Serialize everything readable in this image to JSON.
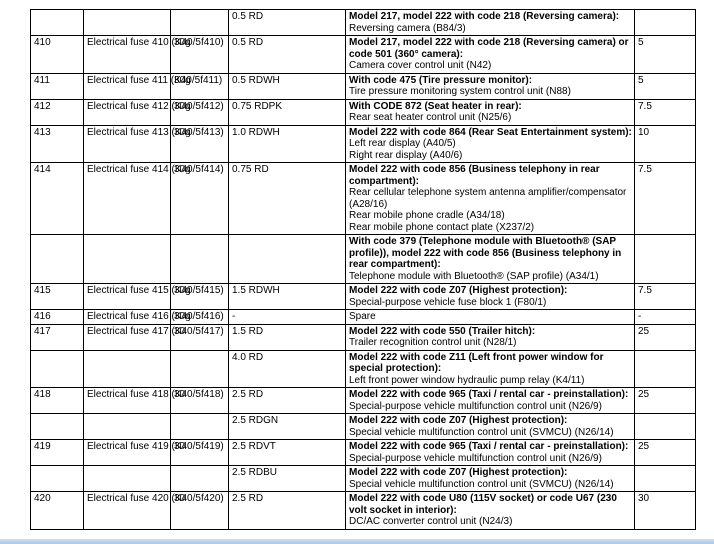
{
  "table": {
    "rows": [
      {
        "wire": "0.5 RD",
        "heading": "Model 217, model 222 with code 218 (Reversing camera):",
        "details": [
          "Reversing camera (B84/3)"
        ]
      },
      {
        "fuse": "410",
        "name": "Electrical fuse 410 (K40/5f410)",
        "rating": "30g",
        "wire": "0.5 RD",
        "heading": "Model 217, model 222 with code 218 (Reversing camera) or code 501 (360° camera):",
        "details": [
          "Camera cover control unit (N42)"
        ],
        "amps": "5"
      },
      {
        "fuse": "411",
        "name": "Electrical fuse 411 (K40/5f411)",
        "rating": "30g",
        "wire": "0.5 RDWH",
        "heading": "With code 475 (Tire pressure monitor):",
        "details": [
          "Tire pressure monitoring system control unit (N88)"
        ],
        "amps": "5"
      },
      {
        "fuse": "412",
        "name": "Electrical fuse 412 (K40/5f412)",
        "rating": "30g",
        "wire": "0.75 RDPK",
        "heading": "With CODE 872 (Seat heater in rear):",
        "details": [
          "Rear seat heater control unit (N25/6)"
        ],
        "amps": "7.5"
      },
      {
        "fuse": "413",
        "name": "Electrical fuse 413 (K40/5f413)",
        "rating": "30g",
        "wire": "1.0 RDWH",
        "heading": "Model 222 with code 864 (Rear Seat Entertainment system):",
        "details": [
          "Left rear display (A40/5)",
          "Right rear display (A40/6)"
        ],
        "amps": "10"
      },
      {
        "fuse": "414",
        "name": "Electrical fuse 414 (K40/5f414)",
        "rating": "30g",
        "wire": "0.75 RD",
        "heading": "Model 222 with code 856 (Business telephony in rear compartment):",
        "details": [
          "Rear cellular telephone system antenna amplifier/compensator (A28/16)",
          "Rear mobile phone cradle (A34/18)",
          "Rear mobile phone contact plate (X237/2)"
        ],
        "amps": "7.5"
      },
      {
        "heading": "With code 379 (Telephone module with Bluetooth® (SAP profile)), model 222 with code 856 (Business telephony in rear compartment):",
        "details": [
          "Telephone module with Bluetooth® (SAP profile) (A34/1)"
        ]
      },
      {
        "fuse": "415",
        "name": "Electrical fuse 415 (K40/5f415)",
        "rating": "30g",
        "wire": "1.5 RDWH",
        "heading": "Model 222 with code Z07 (Highest protection):",
        "details": [
          "Special-purpose vehicle fuse block 1 (F80/1)"
        ],
        "amps": "7.5"
      },
      {
        "fuse": "416",
        "name": "Electrical fuse 416 (K40/5f416)",
        "rating": "30g",
        "wire": "-",
        "details": [
          "Spare"
        ],
        "amps": "-"
      },
      {
        "fuse": "417",
        "name": "Electrical fuse 417 (K40/5f417)",
        "rating": "30",
        "wire": "1.5 RD",
        "heading": "Model 222 with code 550 (Trailer hitch):",
        "details": [
          "Trailer recognition control unit (N28/1)"
        ],
        "amps": "25"
      },
      {
        "wire": "4.0 RD",
        "heading": "Model 222 with code Z11 (Left front power window for special protection):",
        "details": [
          "Left front power window hydraulic pump relay (K4/11)"
        ]
      },
      {
        "fuse": "418",
        "name": "Electrical fuse 418 (K40/5f418)",
        "rating": "30",
        "wire": "2.5 RD",
        "heading": "Model 222 with code 965 (Taxi / rental car - preinstallation):",
        "details": [
          "Special-purpose vehicle multifunction control unit (N26/9)"
        ],
        "amps": "25"
      },
      {
        "wire": "2.5 RDGN",
        "heading": "Model 222 with code Z07 (Highest protection):",
        "details": [
          "Special vehicle multifunction control unit (SVMCU) (N26/14)"
        ]
      },
      {
        "fuse": "419",
        "name": "Electrical fuse 419 (K40/5f419)",
        "rating": "30",
        "wire": "2.5 RDVT",
        "heading": "Model 222 with code 965 (Taxi / rental car - preinstallation):",
        "details": [
          "Special-purpose vehicle multifunction control unit (N26/9)"
        ],
        "amps": "25"
      },
      {
        "wire": "2.5 RDBU",
        "heading": "Model 222 with code Z07 (Highest protection):",
        "details": [
          "Special vehicle multifunction control unit (SVMCU) (N26/14)"
        ]
      },
      {
        "fuse": "420",
        "name": "Electrical fuse 420 (K40/5f420)",
        "rating": "30",
        "wire": "2.5 RD",
        "heading": "Model 222 with code U80 (115V socket) or code U67 (230 volt socket in interior):",
        "details": [
          "DC/AC converter control unit (N24/3)"
        ],
        "amps": "30"
      }
    ]
  }
}
